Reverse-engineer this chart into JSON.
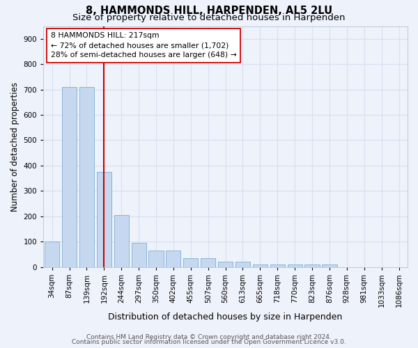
{
  "title1": "8, HAMMONDS HILL, HARPENDEN, AL5 2LU",
  "title2": "Size of property relative to detached houses in Harpenden",
  "xlabel": "Distribution of detached houses by size in Harpenden",
  "ylabel": "Number of detached properties",
  "categories": [
    "34sqm",
    "87sqm",
    "139sqm",
    "192sqm",
    "244sqm",
    "297sqm",
    "350sqm",
    "402sqm",
    "455sqm",
    "507sqm",
    "560sqm",
    "613sqm",
    "665sqm",
    "718sqm",
    "770sqm",
    "823sqm",
    "876sqm",
    "928sqm",
    "981sqm",
    "1033sqm",
    "1086sqm"
  ],
  "values": [
    100,
    710,
    710,
    375,
    205,
    95,
    65,
    65,
    35,
    35,
    20,
    20,
    10,
    10,
    10,
    10,
    10,
    0,
    0,
    0,
    0
  ],
  "bar_color": "#c5d8f0",
  "bar_edge_color": "#7bafd4",
  "vline_color": "#cc0000",
  "vline_pos": 3.0,
  "annotation_line1": "8 HAMMONDS HILL: 217sqm",
  "annotation_line2": "← 72% of detached houses are smaller (1,702)",
  "annotation_line3": "28% of semi-detached houses are larger (648) →",
  "annotation_box_color": "#ffffff",
  "annotation_box_edge": "#cc0000",
  "footer1": "Contains HM Land Registry data © Crown copyright and database right 2024.",
  "footer2": "Contains public sector information licensed under the Open Government Licence v3.0.",
  "ylim": [
    0,
    950
  ],
  "yticks": [
    0,
    100,
    200,
    300,
    400,
    500,
    600,
    700,
    800,
    900
  ],
  "bg_color": "#eef2fb",
  "grid_color": "#d8dff0",
  "title1_fontsize": 10.5,
  "title2_fontsize": 9.5,
  "ylabel_fontsize": 8.5,
  "xlabel_fontsize": 9,
  "tick_fontsize": 7.5,
  "footer_fontsize": 6.5
}
